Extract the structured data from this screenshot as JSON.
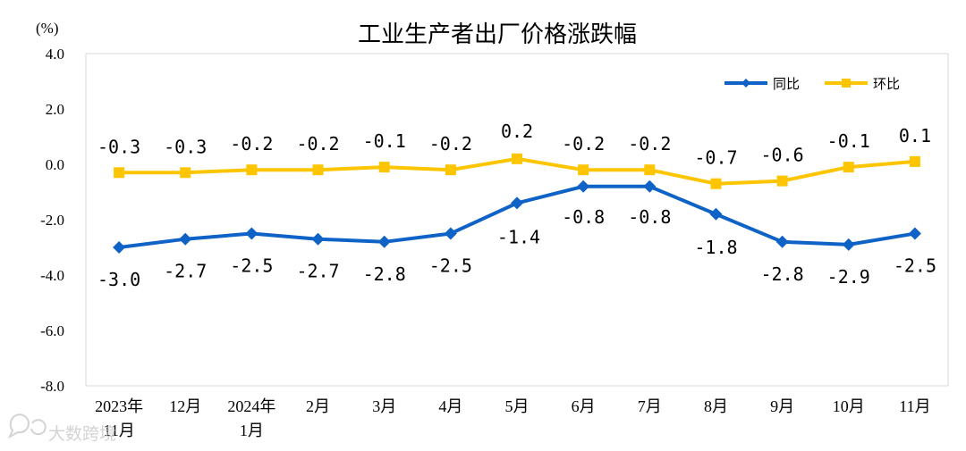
{
  "chart_data": {
    "type": "line",
    "title": "工业生产者出厂价格涨跌幅",
    "unit_label": "(%)",
    "ylim": [
      -8.0,
      4.0
    ],
    "yticks": [
      "4.0",
      "2.0",
      "0.0",
      "-2.0",
      "-4.0",
      "-6.0",
      "-8.0"
    ],
    "ytick_values": [
      4,
      2,
      0,
      -2,
      -4,
      -6,
      -8
    ],
    "categories": [
      [
        "2023年",
        "11月"
      ],
      [
        "12月"
      ],
      [
        "2024年",
        "1月"
      ],
      [
        "2月"
      ],
      [
        "3月"
      ],
      [
        "4月"
      ],
      [
        "5月"
      ],
      [
        "6月"
      ],
      [
        "7月"
      ],
      [
        "8月"
      ],
      [
        "9月"
      ],
      [
        "10月"
      ],
      [
        "11月"
      ]
    ],
    "series": [
      {
        "name": "同比",
        "color": "#0f62c6",
        "marker": "diamond",
        "values": [
          -3.0,
          -2.7,
          -2.5,
          -2.7,
          -2.8,
          -2.5,
          -1.4,
          -0.8,
          -0.8,
          -1.8,
          -2.8,
          -2.9,
          -2.5
        ],
        "labels": [
          "-3.0",
          "-2.7",
          "-2.5",
          "-2.7",
          "-2.8",
          "-2.5",
          "-1.4",
          "-0.8",
          "-0.8",
          "-1.8",
          "-2.8",
          "-2.9",
          "-2.5"
        ]
      },
      {
        "name": "环比",
        "color": "#fcc500",
        "marker": "square",
        "values": [
          -0.3,
          -0.3,
          -0.2,
          -0.2,
          -0.1,
          -0.2,
          0.2,
          -0.2,
          -0.2,
          -0.7,
          -0.6,
          -0.1,
          0.1
        ],
        "labels": [
          "-0.3",
          "-0.3",
          "-0.2",
          "-0.2",
          "-0.1",
          "-0.2",
          "0.2",
          "-0.2",
          "-0.2",
          "-0.7",
          "-0.6",
          "-0.1",
          "0.1"
        ]
      }
    ],
    "grid": false,
    "legend_position": "top-right"
  },
  "watermark": {
    "text": "大数跨境",
    "logo_icon": "chat-bubble-icon"
  }
}
